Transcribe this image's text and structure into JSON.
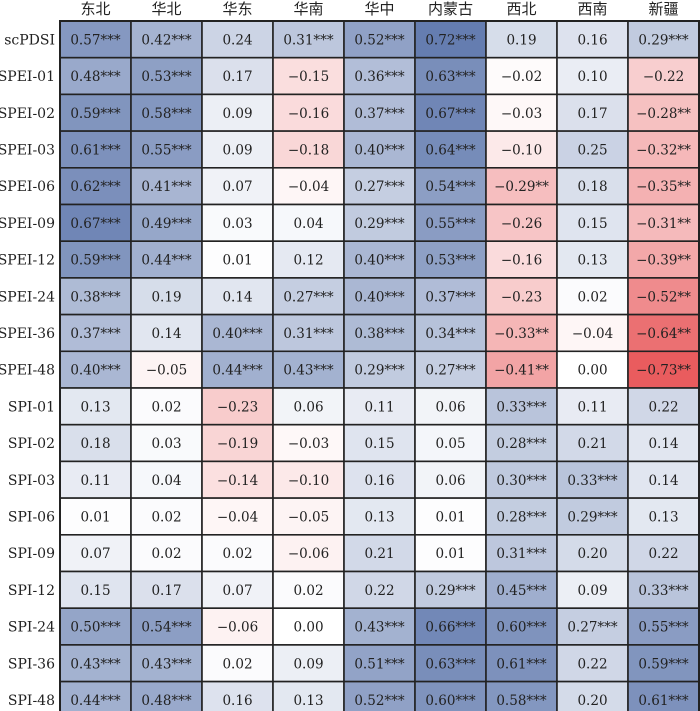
{
  "chart_data": {
    "type": "heatmap",
    "columns": [
      "东北",
      "华北",
      "华东",
      "华南",
      "华中",
      "内蒙古",
      "西北",
      "西南",
      "新疆"
    ],
    "rows": [
      "scPDSI",
      "SPEI-01",
      "SPEI-02",
      "SPEI-03",
      "SPEI-06",
      "SPEI-09",
      "SPEI-12",
      "SPEI-24",
      "SPEI-36",
      "SPEI-48",
      "SPI-01",
      "SPI-02",
      "SPI-03",
      "SPI-06",
      "SPI-09",
      "SPI-12",
      "SPI-24",
      "SPI-36",
      "SPI-48"
    ],
    "cells": [
      [
        "0.57***",
        "0.42***",
        "0.24",
        "0.31***",
        "0.52***",
        "0.72***",
        "0.19",
        "0.16",
        "0.29***"
      ],
      [
        "0.48***",
        "0.53***",
        "0.17",
        "−0.15",
        "0.36***",
        "0.63***",
        "−0.02",
        "0.10",
        "−0.22"
      ],
      [
        "0.59***",
        "0.58***",
        "0.09",
        "−0.16",
        "0.37***",
        "0.67***",
        "−0.03",
        "0.17",
        "−0.28**"
      ],
      [
        "0.61***",
        "0.55***",
        "0.09",
        "−0.18",
        "0.40***",
        "0.64***",
        "−0.10",
        "0.25",
        "−0.32**"
      ],
      [
        "0.62***",
        "0.41***",
        "0.07",
        "−0.04",
        "0.27***",
        "0.54***",
        "−0.29**",
        "0.18",
        "−0.35**"
      ],
      [
        "0.67***",
        "0.49***",
        "0.03",
        "0.04",
        "0.29***",
        "0.55***",
        "−0.26",
        "0.15",
        "−0.31**"
      ],
      [
        "0.59***",
        "0.44***",
        "0.01",
        "0.12",
        "0.40***",
        "0.53***",
        "−0.16",
        "0.13",
        "−0.39**"
      ],
      [
        "0.38***",
        "0.19",
        "0.14",
        "0.27***",
        "0.40***",
        "0.37***",
        "−0.23",
        "0.02",
        "−0.52**"
      ],
      [
        "0.37***",
        "0.14",
        "0.40***",
        "0.31***",
        "0.38***",
        "0.34***",
        "−0.33**",
        "−0.04",
        "−0.64**"
      ],
      [
        "0.40***",
        "−0.05",
        "0.44***",
        "0.43***",
        "0.29***",
        "0.27***",
        "−0.41**",
        "0.00",
        "−0.73**"
      ],
      [
        "0.13",
        "0.02",
        "−0.23",
        "0.06",
        "0.11",
        "0.06",
        "0.33***",
        "0.11",
        "0.22"
      ],
      [
        "0.18",
        "0.03",
        "−0.19",
        "−0.03",
        "0.15",
        "0.05",
        "0.28***",
        "0.21",
        "0.14"
      ],
      [
        "0.11",
        "0.04",
        "−0.14",
        "−0.10",
        "0.16",
        "0.06",
        "0.30***",
        "0.33***",
        "0.14"
      ],
      [
        "0.01",
        "0.02",
        "−0.04",
        "−0.05",
        "0.13",
        "0.01",
        "0.28***",
        "0.29***",
        "0.13"
      ],
      [
        "0.07",
        "0.02",
        "0.02",
        "−0.06",
        "0.21",
        "0.01",
        "0.31***",
        "0.20",
        "0.22"
      ],
      [
        "0.15",
        "0.17",
        "0.07",
        "0.02",
        "0.22",
        "0.29***",
        "0.45***",
        "0.09",
        "0.33***"
      ],
      [
        "0.50***",
        "0.54***",
        "−0.06",
        "0.00",
        "0.43***",
        "0.66***",
        "0.60***",
        "0.27***",
        "0.55***"
      ],
      [
        "0.43***",
        "0.43***",
        "0.02",
        "0.09",
        "0.51***",
        "0.63***",
        "0.61***",
        "0.22",
        "0.59***"
      ],
      [
        "0.44***",
        "0.48***",
        "0.16",
        "0.13",
        "0.52***",
        "0.60***",
        "0.58***",
        "0.20",
        "0.61***"
      ]
    ],
    "colors": {
      "positive": "#5f78ad",
      "negative": "#e8585a",
      "neutral": "#ffffff"
    },
    "value_range": [
      -0.75,
      0.75
    ]
  }
}
